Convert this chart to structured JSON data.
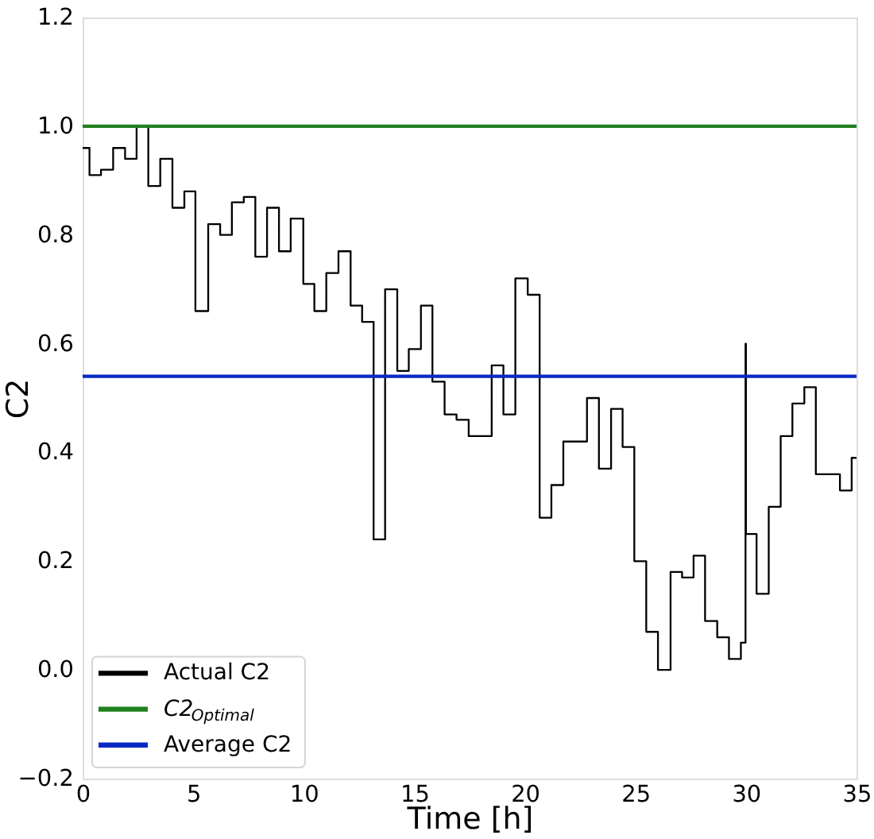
{
  "chart_data": {
    "type": "step",
    "xlabel": "Time [h]",
    "ylabel": "C2",
    "xlim": [
      0,
      35
    ],
    "ylim": [
      -0.2,
      1.2
    ],
    "xticks": [
      0,
      5,
      10,
      15,
      20,
      25,
      30,
      35
    ],
    "yticks": [
      -0.2,
      {
        "value": 0,
        "label": "0.0"
      },
      0.2,
      0.4,
      0.6,
      0.8,
      {
        "value": 1,
        "label": "1.0"
      },
      1.2
    ],
    "legend": "bottom left",
    "series": [
      {
        "name": "Actual C2",
        "color": "#000000",
        "x": [
          0,
          0.31,
          0.83,
          1.38,
          1.92,
          2.44,
          2.97,
          3.51,
          4.06,
          4.6,
          5.1,
          5.68,
          6.22,
          6.75,
          7.29,
          7.81,
          8.34,
          8.88,
          9.41,
          9.98,
          10.48,
          11.02,
          11.57,
          12.12,
          12.64,
          13.16,
          13.68,
          14.23,
          14.75,
          15.3,
          15.82,
          16.37,
          16.91,
          17.46,
          18.5,
          19.03,
          19.57,
          20.13,
          20.67,
          21.2,
          21.74,
          22.28,
          22.81,
          23.35,
          23.9,
          24.42,
          24.95,
          25.49,
          26.02,
          26.59,
          27.11,
          27.63,
          28.15,
          28.7,
          29.23,
          29.77,
          29.98,
          30.0,
          30.48,
          31.03,
          31.57,
          32.1,
          32.64,
          33.16,
          33.71,
          34.25,
          34.78,
          35
        ],
        "values": [
          0.96,
          0.91,
          0.92,
          0.96,
          0.94,
          1.0,
          0.89,
          0.94,
          0.85,
          0.88,
          0.66,
          0.82,
          0.8,
          0.86,
          0.87,
          0.76,
          0.85,
          0.77,
          0.83,
          0.71,
          0.66,
          0.73,
          0.77,
          0.67,
          0.64,
          0.24,
          0.7,
          0.55,
          0.59,
          0.67,
          0.53,
          0.47,
          0.46,
          0.43,
          0.56,
          0.47,
          0.72,
          0.69,
          0.28,
          0.34,
          0.42,
          0.42,
          0.5,
          0.37,
          0.48,
          0.41,
          0.2,
          0.07,
          0.0,
          0.18,
          0.17,
          0.21,
          0.09,
          0.06,
          0.02,
          0.05,
          0.6,
          0.25,
          0.14,
          0.3,
          0.43,
          0.49,
          0.52,
          0.36,
          0.36,
          0.33,
          0.39,
          0.39
        ]
      },
      {
        "name": "C2$_{Optimal}$",
        "type": "line",
        "color": "#208020",
        "x": [
          0,
          35
        ],
        "values": [
          1.0,
          1.0
        ]
      },
      {
        "name": "Average C2",
        "type": "line",
        "color": "#0a28c4",
        "x": [
          0,
          35
        ],
        "values": [
          0.54,
          0.54
        ]
      }
    ]
  }
}
